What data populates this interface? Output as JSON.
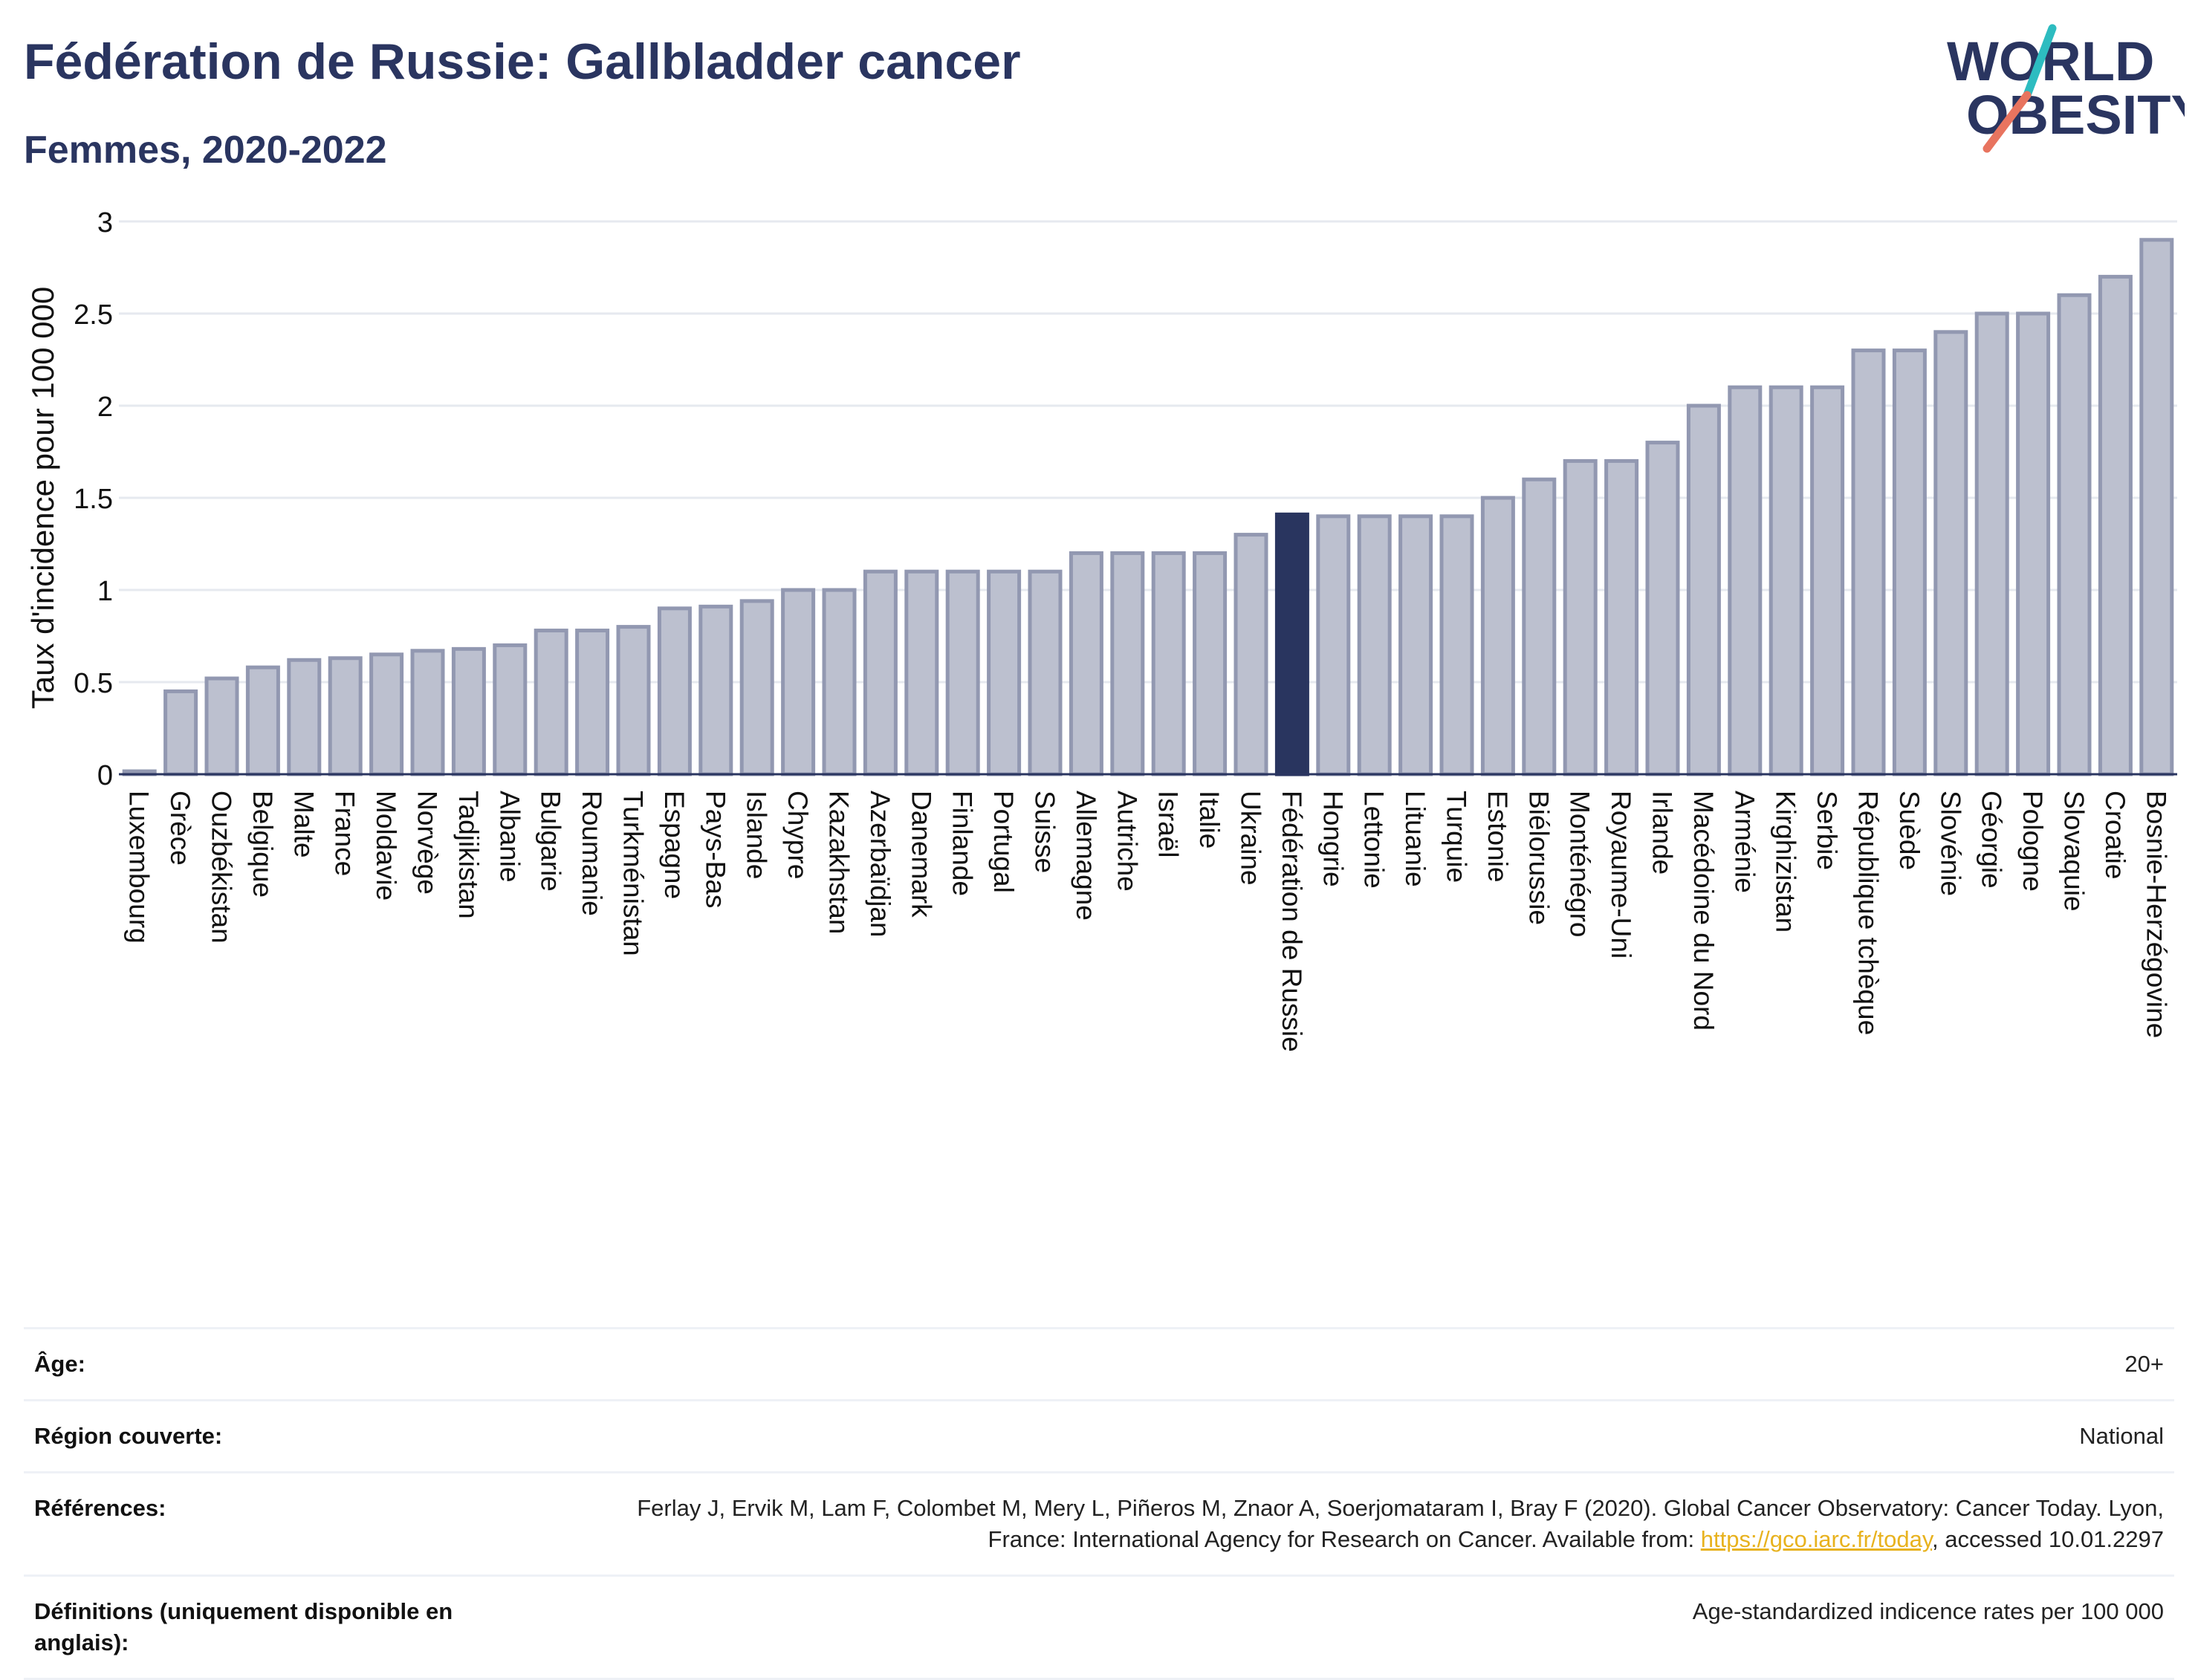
{
  "header": {
    "title": "Fédération de Russie: Gallbladder cancer",
    "subtitle": "Femmes, 2020-2022"
  },
  "logo": {
    "line1": "WORLD",
    "line2": "OBESITY"
  },
  "colors": {
    "text": "#2a3560",
    "bar": "#bcc0cf",
    "bar_outline": "#9298b1",
    "highlight": "#29355f",
    "logo_teal": "#2dbcc0",
    "logo_coral": "#e8745f",
    "link": "#e8b21e",
    "grid": "#e6e9ef"
  },
  "chart_data": {
    "type": "bar",
    "title": "Fédération de Russie: Gallbladder cancer",
    "subtitle": "Femmes, 2020-2022",
    "ylabel": "Taux d'incidence pour 100 000",
    "xlabel": "",
    "ylim": [
      0,
      3
    ],
    "yticks": [
      "0",
      "0.5",
      "1",
      "1.5",
      "2",
      "2.5",
      "3"
    ],
    "grid": true,
    "highlight": "Fédération de Russie",
    "categories": [
      "Luxembourg",
      "Grèce",
      "Ouzbékistan",
      "Belgique",
      "Malte",
      "France",
      "Moldavie",
      "Norvège",
      "Tadjikistan",
      "Albanie",
      "Bulgarie",
      "Roumanie",
      "Turkménistan",
      "Espagne",
      "Pays-Bas",
      "Islande",
      "Chypre",
      "Kazakhstan",
      "Azerbaïdjan",
      "Danemark",
      "Finlande",
      "Portugal",
      "Suisse",
      "Allemagne",
      "Autriche",
      "Israël",
      "Italie",
      "Ukraine",
      "Fédération de Russie",
      "Hongrie",
      "Lettonie",
      "Lituanie",
      "Turquie",
      "Estonie",
      "Biélorussie",
      "Monténégro",
      "Royaume-Uni",
      "Irlande",
      "Macédoine du Nord",
      "Arménie",
      "Kirghizistan",
      "Serbie",
      "République tchèque",
      "Suède",
      "Slovénie",
      "Géorgie",
      "Pologne",
      "Slovaquie",
      "Croatie",
      "Bosnie-Herzégovine"
    ],
    "values": [
      0.01,
      0.45,
      0.52,
      0.58,
      0.62,
      0.63,
      0.65,
      0.67,
      0.68,
      0.7,
      0.78,
      0.78,
      0.8,
      0.9,
      0.91,
      0.94,
      1.0,
      1.0,
      1.1,
      1.1,
      1.1,
      1.1,
      1.1,
      1.2,
      1.2,
      1.2,
      1.2,
      1.3,
      1.41,
      1.4,
      1.4,
      1.4,
      1.4,
      1.5,
      1.6,
      1.7,
      1.7,
      1.8,
      2.0,
      2.1,
      2.1,
      2.1,
      2.3,
      2.3,
      2.4,
      2.5,
      2.5,
      2.6,
      2.7,
      2.9
    ]
  },
  "info": {
    "age_label": "Âge:",
    "age_value": "20+",
    "region_label": "Région couverte:",
    "region_value": "National",
    "ref_label": "Références:",
    "ref_text": "Ferlay J, Ervik M, Lam F, Colombet M, Mery L, Piñeros M, Znaor A, Soerjomataram I, Bray F (2020). Global Cancer Observatory: Cancer Today. Lyon, France: International Agency for Research on Cancer. Available from: ",
    "ref_link": "https://gco.iarc.fr/today",
    "ref_suffix": ", accessed 10.01.2297",
    "def_label": "Définitions (uniquement disponible en anglais):",
    "def_value": "Age-standardized indicence rates per 100 000"
  }
}
